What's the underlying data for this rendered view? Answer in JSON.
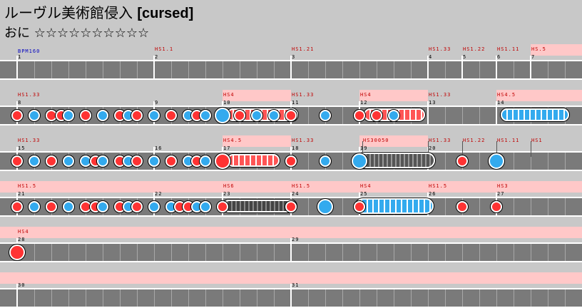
{
  "header": {
    "title": "ルーヴル美術館侵入",
    "tag": "[cursed]",
    "difficulty_label": "おに",
    "stars": "☆☆☆☆☆☆☆☆☆☆"
  },
  "colors": {
    "don": "#ff3333",
    "ka": "#33aaee",
    "roll_yellow": "#444444",
    "lane": "#7a7a7a",
    "scroll_region": "#ffc8c8"
  },
  "bpm_label": "BPM160",
  "rows": [
    {
      "measures": [
        "1",
        "2",
        "3",
        "4",
        "5",
        "6",
        "7"
      ],
      "speed_changes": [
        "HS1.1",
        "HS1.21",
        "HS1.33",
        "HS1.22",
        "HS1.11",
        "HS.5"
      ],
      "notes": []
    },
    {
      "measures": [
        "8",
        "9",
        "10",
        "11",
        "12",
        "13",
        "14"
      ],
      "speed_changes": [
        "HS1.33",
        "HS4",
        "HS1.33",
        "HS4",
        "HS1.33",
        "HS4.5"
      ],
      "notes": [
        "don",
        "ka",
        "don",
        "don",
        "ka",
        "don",
        "ka",
        "don",
        "ka",
        "don",
        "ka",
        "don",
        "ka",
        "don",
        "ka",
        "ka",
        "don",
        "ka",
        "ka",
        "don",
        "ka",
        "don",
        "don",
        "ka"
      ]
    },
    {
      "measures": [
        "15",
        "16",
        "17",
        "18",
        "19",
        "20"
      ],
      "speed_changes": [
        "HS1.33",
        "HS4.5",
        "HS1.33",
        "HS30050",
        "HS1.33",
        "HS1.22",
        "HS1.11",
        "HS1"
      ],
      "notes": [
        "don",
        "ka",
        "don",
        "ka",
        "ka",
        "don",
        "ka",
        "don",
        "ka",
        "don",
        "ka",
        "don",
        "ka",
        "don",
        "ka",
        "don",
        "don",
        "ka",
        "ka",
        "don",
        "ka"
      ]
    },
    {
      "measures": [
        "21",
        "22",
        "23",
        "24",
        "25",
        "26",
        "27"
      ],
      "speed_changes": [
        "HS1.5",
        "HS6",
        "HS1.5",
        "HS4",
        "HS1.5",
        "HS3"
      ],
      "notes": [
        "don",
        "ka",
        "don",
        "ka",
        "don",
        "don",
        "ka",
        "don",
        "ka",
        "don",
        "ka",
        "ka",
        "don",
        "don",
        "ka",
        "ka",
        "don",
        "don",
        "ka",
        "don",
        "don",
        "don"
      ]
    },
    {
      "measures": [
        "28",
        "29"
      ],
      "speed_changes": [
        "HS4"
      ],
      "notes": [
        "don"
      ]
    },
    {
      "measures": [
        "30",
        "31"
      ],
      "speed_changes": [],
      "notes": []
    }
  ]
}
